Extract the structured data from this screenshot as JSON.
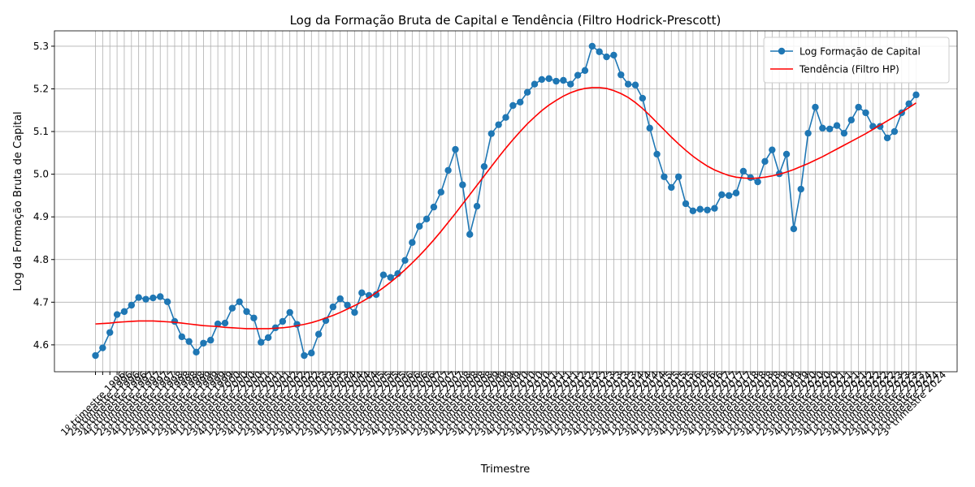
{
  "chart_data": {
    "type": "line",
    "title": "Log da Formação Bruta de Capital e Tendência (Filtro Hodrick-Prescott)",
    "x_label": "Trimestre",
    "y_label": "Log da Formação Bruta de Capital",
    "categories": [
      "1º trimestre 1996",
      "2º trimestre 1996",
      "3º trimestre 1996",
      "4º trimestre 1996",
      "1º trimestre 1997",
      "2º trimestre 1997",
      "3º trimestre 1997",
      "4º trimestre 1997",
      "1º trimestre 1998",
      "2º trimestre 1998",
      "3º trimestre 1998",
      "4º trimestre 1998",
      "1º trimestre 1999",
      "2º trimestre 1999",
      "3º trimestre 1999",
      "4º trimestre 1999",
      "1º trimestre 2000",
      "2º trimestre 2000",
      "3º trimestre 2000",
      "4º trimestre 2000",
      "1º trimestre 2001",
      "2º trimestre 2001",
      "3º trimestre 2001",
      "4º trimestre 2001",
      "1º trimestre 2002",
      "2º trimestre 2002",
      "3º trimestre 2002",
      "4º trimestre 2002",
      "1º trimestre 2003",
      "2º trimestre 2003",
      "3º trimestre 2003",
      "4º trimestre 2003",
      "1º trimestre 2004",
      "2º trimestre 2004",
      "3º trimestre 2004",
      "4º trimestre 2004",
      "1º trimestre 2005",
      "2º trimestre 2005",
      "3º trimestre 2005",
      "4º trimestre 2005",
      "1º trimestre 2006",
      "2º trimestre 2006",
      "3º trimestre 2006",
      "4º trimestre 2006",
      "1º trimestre 2007",
      "2º trimestre 2007",
      "3º trimestre 2007",
      "4º trimestre 2007",
      "1º trimestre 2008",
      "2º trimestre 2008",
      "3º trimestre 2008",
      "4º trimestre 2008",
      "1º trimestre 2009",
      "2º trimestre 2009",
      "3º trimestre 2009",
      "4º trimestre 2009",
      "1º trimestre 2010",
      "2º trimestre 2010",
      "3º trimestre 2010",
      "4º trimestre 2010",
      "1º trimestre 2011",
      "2º trimestre 2011",
      "3º trimestre 2011",
      "4º trimestre 2011",
      "1º trimestre 2012",
      "2º trimestre 2012",
      "3º trimestre 2012",
      "4º trimestre 2012",
      "1º trimestre 2013",
      "2º trimestre 2013",
      "3º trimestre 2013",
      "4º trimestre 2013",
      "1º trimestre 2014",
      "2º trimestre 2014",
      "3º trimestre 2014",
      "4º trimestre 2014",
      "1º trimestre 2015",
      "2º trimestre 2015",
      "3º trimestre 2015",
      "4º trimestre 2015",
      "1º trimestre 2016",
      "2º trimestre 2016",
      "3º trimestre 2016",
      "4º trimestre 2016",
      "1º trimestre 2017",
      "2º trimestre 2017",
      "3º trimestre 2017",
      "4º trimestre 2017",
      "1º trimestre 2018",
      "2º trimestre 2018",
      "3º trimestre 2018",
      "4º trimestre 2018",
      "1º trimestre 2019",
      "2º trimestre 2019",
      "3º trimestre 2019",
      "4º trimestre 2019",
      "1º trimestre 2020",
      "2º trimestre 2020",
      "3º trimestre 2020",
      "4º trimestre 2020",
      "1º trimestre 2021",
      "2º trimestre 2021",
      "3º trimestre 2021",
      "4º trimestre 2021",
      "1º trimestre 2022",
      "2º trimestre 2022",
      "3º trimestre 2022",
      "4º trimestre 2022",
      "1º trimestre 2023",
      "2º trimestre 2023",
      "3º trimestre 2023",
      "4º trimestre 2023",
      "1º trimestre 2024",
      "2º trimestre 2024",
      "3º trimestre 2024"
    ],
    "series": [
      {
        "name": "Log Formação de Capital",
        "color": "#1f77b4",
        "marker": true,
        "values": [
          4.575,
          4.593,
          4.629,
          4.671,
          4.678,
          4.693,
          4.711,
          4.707,
          4.71,
          4.713,
          4.701,
          4.655,
          4.619,
          4.608,
          4.583,
          4.604,
          4.611,
          4.649,
          4.651,
          4.686,
          4.701,
          4.678,
          4.663,
          4.606,
          4.617,
          4.64,
          4.655,
          4.676,
          4.648,
          4.575,
          4.581,
          4.625,
          4.657,
          4.689,
          4.708,
          4.693,
          4.676,
          4.722,
          4.716,
          4.718,
          4.764,
          4.758,
          4.767,
          4.798,
          4.84,
          4.878,
          4.895,
          4.923,
          4.958,
          5.009,
          5.058,
          4.975,
          4.859,
          4.925,
          5.018,
          5.095,
          5.116,
          5.133,
          5.161,
          5.169,
          5.192,
          5.211,
          5.222,
          5.224,
          5.218,
          5.22,
          5.211,
          5.232,
          5.243,
          5.3,
          5.287,
          5.275,
          5.279,
          5.233,
          5.211,
          5.209,
          5.178,
          5.108,
          5.047,
          4.994,
          4.969,
          4.994,
          4.931,
          4.914,
          4.918,
          4.916,
          4.92,
          4.952,
          4.95,
          4.956,
          5.007,
          4.992,
          4.982,
          5.03,
          5.057,
          5.001,
          5.047,
          4.872,
          4.965,
          5.096,
          5.157,
          5.108,
          5.106,
          5.114,
          5.096,
          5.127,
          5.157,
          5.144,
          5.112,
          5.112,
          5.085,
          5.1,
          5.144,
          5.165,
          5.186
        ]
      },
      {
        "name": "Tendência (Filtro HP)",
        "color": "#ff0000",
        "marker": false,
        "values": [
          4.649,
          4.65,
          4.651,
          4.653,
          4.654,
          4.655,
          4.656,
          4.656,
          4.656,
          4.655,
          4.654,
          4.653,
          4.651,
          4.649,
          4.647,
          4.645,
          4.644,
          4.643,
          4.641,
          4.64,
          4.639,
          4.638,
          4.638,
          4.638,
          4.638,
          4.639,
          4.64,
          4.642,
          4.645,
          4.648,
          4.652,
          4.657,
          4.663,
          4.669,
          4.676,
          4.684,
          4.692,
          4.701,
          4.711,
          4.722,
          4.734,
          4.747,
          4.761,
          4.776,
          4.792,
          4.809,
          4.827,
          4.846,
          4.866,
          4.887,
          4.908,
          4.93,
          4.952,
          4.974,
          4.996,
          5.018,
          5.04,
          5.061,
          5.081,
          5.1,
          5.118,
          5.134,
          5.149,
          5.162,
          5.173,
          5.183,
          5.191,
          5.197,
          5.201,
          5.203,
          5.203,
          5.201,
          5.196,
          5.189,
          5.18,
          5.168,
          5.154,
          5.138,
          5.121,
          5.104,
          5.087,
          5.071,
          5.056,
          5.042,
          5.03,
          5.019,
          5.01,
          5.003,
          4.997,
          4.993,
          4.991,
          4.99,
          4.991,
          4.993,
          4.996,
          5.0,
          5.005,
          5.011,
          5.018,
          5.025,
          5.033,
          5.041,
          5.05,
          5.059,
          5.068,
          5.077,
          5.086,
          5.095,
          5.105,
          5.115,
          5.125,
          5.135,
          5.145,
          5.156,
          5.167
        ]
      }
    ],
    "ylim": [
      4.537,
      5.336
    ],
    "yticks": [
      {
        "value": 4.6,
        "label": "4.6"
      },
      {
        "value": 4.7,
        "label": "4.7"
      },
      {
        "value": 4.8,
        "label": "4.8"
      },
      {
        "value": 4.9,
        "label": "4.9"
      },
      {
        "value": 5.0,
        "label": "5.0"
      },
      {
        "value": 5.1,
        "label": "5.1"
      },
      {
        "value": 5.2,
        "label": "5.2"
      },
      {
        "value": 5.3,
        "label": "5.3"
      }
    ],
    "grid": true,
    "legend": "upper right"
  }
}
